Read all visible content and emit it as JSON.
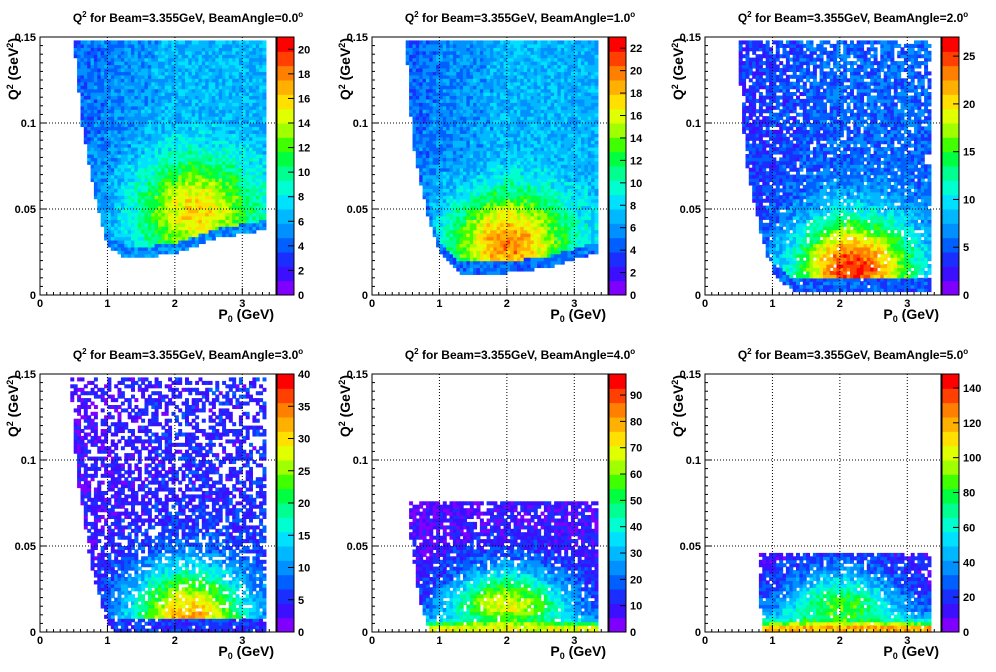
{
  "figure": {
    "colors": {
      "background": "#ffffff",
      "frame": "#000000",
      "grid": "#000000",
      "palette": [
        "#8000ff",
        "#3c10ff",
        "#1a2fff",
        "#0060ff",
        "#0090ff",
        "#00b8ff",
        "#00e0ff",
        "#00ffd0",
        "#00ff90",
        "#00ff40",
        "#40ff00",
        "#a0ff00",
        "#e0ff00",
        "#ffe000",
        "#ffb000",
        "#ff8000",
        "#ff4000",
        "#ff0000"
      ]
    }
  },
  "chart_data": [
    {
      "type": "heatmap",
      "title_prefix": "Q",
      "title_sup": "2",
      "title_rest": " for Beam=3.355GeV, BeamAngle=0.0",
      "title_deg": "o",
      "xlabel_main": "P",
      "xlabel_sub": "0",
      "xlabel_unit": " (GeV)",
      "ylabel_main": "Q",
      "ylabel_sup": "2",
      "ylabel_unit": " (GeV",
      "ylabel_unit_sup": "2",
      "ylabel_close": ")",
      "xlim": [
        0,
        3.5
      ],
      "ylim": [
        0,
        0.15
      ],
      "xticks": [
        0,
        1,
        2,
        3
      ],
      "xtick_labels": [
        "0",
        "1",
        "2",
        "3"
      ],
      "yticks": [
        0,
        0.05,
        0.1,
        0.15
      ],
      "ytick_labels": [
        "0",
        "0.05",
        "0.1",
        "0.15"
      ],
      "grid": true,
      "zlim": [
        0,
        21
      ],
      "zticks": [
        0,
        2,
        4,
        6,
        8,
        10,
        12,
        14,
        16,
        18,
        20
      ],
      "ztick_labels": [
        "0",
        "2",
        "4",
        "6",
        "8",
        "10",
        "12",
        "14",
        "16",
        "18",
        "20"
      ],
      "colorbar": "right",
      "region": {
        "xmin": 0.5,
        "xmax": 3.35,
        "ymax": 0.148,
        "edge": [
          [
            0.5,
            0.148
          ],
          [
            0.62,
            0.1
          ],
          [
            0.8,
            0.06
          ],
          [
            1.0,
            0.028
          ],
          [
            1.3,
            0.021
          ],
          [
            2.0,
            0.024
          ],
          [
            2.6,
            0.033
          ],
          [
            3.35,
            0.038
          ]
        ]
      },
      "density": {
        "peak_x": 2.3,
        "peak_y": 0.05,
        "peak_level": 0.45,
        "base_level": 0.3,
        "edge_level": 0.18,
        "low_band_level": 0.0,
        "sparse": 0.0
      }
    },
    {
      "type": "heatmap",
      "title_prefix": "Q",
      "title_sup": "2",
      "title_rest": " for Beam=3.355GeV, BeamAngle=1.0",
      "title_deg": "o",
      "xlabel_main": "P",
      "xlabel_sub": "0",
      "xlabel_unit": " (GeV)",
      "ylabel_main": "Q",
      "ylabel_sup": "2",
      "ylabel_unit": " (GeV",
      "ylabel_unit_sup": "2",
      "ylabel_close": ")",
      "xlim": [
        0,
        3.5
      ],
      "ylim": [
        0,
        0.15
      ],
      "xticks": [
        0,
        1,
        2,
        3
      ],
      "xtick_labels": [
        "0",
        "1",
        "2",
        "3"
      ],
      "yticks": [
        0,
        0.05,
        0.1,
        0.15
      ],
      "ytick_labels": [
        "0",
        "0.05",
        "0.1",
        "0.15"
      ],
      "grid": true,
      "zlim": [
        0,
        23
      ],
      "zticks": [
        0,
        2,
        4,
        6,
        8,
        10,
        12,
        14,
        16,
        18,
        20,
        22
      ],
      "ztick_labels": [
        "0",
        "2",
        "4",
        "6",
        "8",
        "10",
        "12",
        "14",
        "16",
        "18",
        "20",
        "22"
      ],
      "colorbar": "right",
      "region": {
        "xmin": 0.5,
        "xmax": 3.35,
        "ymax": 0.148,
        "edge": [
          [
            0.5,
            0.148
          ],
          [
            0.6,
            0.09
          ],
          [
            0.8,
            0.05
          ],
          [
            1.0,
            0.025
          ],
          [
            1.3,
            0.013
          ],
          [
            2.0,
            0.013
          ],
          [
            2.6,
            0.016
          ],
          [
            3.35,
            0.025
          ]
        ]
      },
      "density": {
        "peak_x": 2.0,
        "peak_y": 0.03,
        "peak_level": 0.55,
        "base_level": 0.3,
        "edge_level": 0.15,
        "low_band_level": 0.0,
        "sparse": 0.0
      }
    },
    {
      "type": "heatmap",
      "title_prefix": "Q",
      "title_sup": "2",
      "title_rest": " for Beam=3.355GeV, BeamAngle=2.0",
      "title_deg": "o",
      "xlabel_main": "P",
      "xlabel_sub": "0",
      "xlabel_unit": " (GeV)",
      "ylabel_main": "Q",
      "ylabel_sup": "2",
      "ylabel_unit": " (GeV",
      "ylabel_unit_sup": "2",
      "ylabel_close": ")",
      "xlim": [
        0,
        3.5
      ],
      "ylim": [
        0,
        0.15
      ],
      "xticks": [
        0,
        1,
        2,
        3
      ],
      "xtick_labels": [
        "0",
        "1",
        "2",
        "3"
      ],
      "yticks": [
        0,
        0.05,
        0.1,
        0.15
      ],
      "ytick_labels": [
        "0",
        "0.05",
        "0.1",
        "0.15"
      ],
      "grid": true,
      "zlim": [
        0,
        27
      ],
      "zticks": [
        0,
        5,
        10,
        15,
        20,
        25
      ],
      "ztick_labels": [
        "0",
        "5",
        "10",
        "15",
        "20",
        "25"
      ],
      "colorbar": "right",
      "region": {
        "xmin": 0.48,
        "xmax": 3.35,
        "ymax": 0.148,
        "edge": [
          [
            0.48,
            0.148
          ],
          [
            0.6,
            0.08
          ],
          [
            0.8,
            0.04
          ],
          [
            1.0,
            0.012
          ],
          [
            1.3,
            0.003
          ],
          [
            3.35,
            0.003
          ]
        ]
      },
      "density": {
        "peak_x": 2.2,
        "peak_y": 0.015,
        "peak_level": 0.75,
        "base_level": 0.2,
        "edge_level": 0.12,
        "low_band_level": 0.0,
        "sparse": 0.12
      }
    },
    {
      "type": "heatmap",
      "title_prefix": "Q",
      "title_sup": "2",
      "title_rest": " for Beam=3.355GeV, BeamAngle=3.0",
      "title_deg": "o",
      "xlabel_main": "P",
      "xlabel_sub": "0",
      "xlabel_unit": " (GeV)",
      "ylabel_main": "Q",
      "ylabel_sup": "2",
      "ylabel_unit": " (GeV",
      "ylabel_unit_sup": "2",
      "ylabel_close": ")",
      "xlim": [
        0,
        3.5
      ],
      "ylim": [
        0,
        0.15
      ],
      "xticks": [
        0,
        1,
        2,
        3
      ],
      "xtick_labels": [
        "0",
        "1",
        "2",
        "3"
      ],
      "yticks": [
        0,
        0.05,
        0.1,
        0.15
      ],
      "ytick_labels": [
        "0",
        "0.05",
        "0.1",
        "0.15"
      ],
      "grid": true,
      "zlim": [
        0,
        40
      ],
      "zticks": [
        0,
        5,
        10,
        15,
        20,
        25,
        30,
        35,
        40
      ],
      "ztick_labels": [
        "0",
        "5",
        "10",
        "15",
        "20",
        "25",
        "30",
        "35",
        "40"
      ],
      "colorbar": "right",
      "region": {
        "xmin": 0.45,
        "xmax": 3.35,
        "ymax": 0.148,
        "edge": [
          [
            0.45,
            0.148
          ],
          [
            0.55,
            0.09
          ],
          [
            0.75,
            0.04
          ],
          [
            0.95,
            0.01
          ],
          [
            1.1,
            0.0
          ],
          [
            3.35,
            0.0
          ]
        ]
      },
      "density": {
        "peak_x": 2.2,
        "peak_y": 0.008,
        "peak_level": 0.7,
        "base_level": 0.12,
        "edge_level": 0.08,
        "low_band_level": 0.0,
        "sparse": 0.3
      }
    },
    {
      "type": "heatmap",
      "title_prefix": "Q",
      "title_sup": "2",
      "title_rest": " for Beam=3.355GeV, BeamAngle=4.0",
      "title_deg": "o",
      "xlabel_main": "P",
      "xlabel_sub": "0",
      "xlabel_unit": " (GeV)",
      "ylabel_main": "Q",
      "ylabel_sup": "2",
      "ylabel_unit": " (GeV",
      "ylabel_unit_sup": "2",
      "ylabel_close": ")",
      "xlim": [
        0,
        3.5
      ],
      "ylim": [
        0,
        0.15
      ],
      "xticks": [
        0,
        1,
        2,
        3
      ],
      "xtick_labels": [
        "0",
        "1",
        "2",
        "3"
      ],
      "yticks": [
        0,
        0.05,
        0.1,
        0.15
      ],
      "ytick_labels": [
        "0",
        "0.05",
        "0.1",
        "0.15"
      ],
      "grid": true,
      "zlim": [
        0,
        98
      ],
      "zticks": [
        0,
        10,
        20,
        30,
        40,
        50,
        60,
        70,
        80,
        90
      ],
      "ztick_labels": [
        "0",
        "10",
        "20",
        "30",
        "40",
        "50",
        "60",
        "70",
        "80",
        "90"
      ],
      "colorbar": "right",
      "region": {
        "xmin": 0.55,
        "xmax": 3.35,
        "ymax": 0.075,
        "edge": [
          [
            0.55,
            0.06
          ],
          [
            0.7,
            0.02
          ],
          [
            0.85,
            0.0
          ],
          [
            3.35,
            0.0
          ]
        ]
      },
      "density": {
        "peak_x": 2.0,
        "peak_y": 0.002,
        "peak_level": 0.75,
        "base_level": 0.05,
        "edge_level": 0.02,
        "low_band_level": 0.25,
        "sparse": 0.1
      }
    },
    {
      "type": "heatmap",
      "title_prefix": "Q",
      "title_sup": "2",
      "title_rest": " for Beam=3.355GeV, BeamAngle=5.0",
      "title_deg": "o",
      "xlabel_main": "P",
      "xlabel_sub": "0",
      "xlabel_unit": " (GeV)",
      "ylabel_main": "Q",
      "ylabel_sup": "2",
      "ylabel_unit": " (GeV",
      "ylabel_unit_sup": "2",
      "ylabel_close": ")",
      "xlim": [
        0,
        3.5
      ],
      "ylim": [
        0,
        0.15
      ],
      "xticks": [
        0,
        1,
        2,
        3
      ],
      "xtick_labels": [
        "0",
        "1",
        "2",
        "3"
      ],
      "yticks": [
        0,
        0.05,
        0.1,
        0.15
      ],
      "ytick_labels": [
        "0",
        "0.05",
        "0.1",
        "0.15"
      ],
      "grid": true,
      "zlim": [
        0,
        148
      ],
      "zticks": [
        0,
        20,
        40,
        60,
        80,
        100,
        120,
        140
      ],
      "ztick_labels": [
        "0",
        "20",
        "40",
        "60",
        "80",
        "100",
        "120",
        "140"
      ],
      "colorbar": "right",
      "region": {
        "xmin": 0.8,
        "xmax": 3.35,
        "ymax": 0.045,
        "edge": [
          [
            0.8,
            0.03
          ],
          [
            0.85,
            0.0
          ],
          [
            3.35,
            0.0
          ]
        ]
      },
      "density": {
        "peak_x": 2.0,
        "peak_y": 0.002,
        "peak_level": 0.55,
        "base_level": 0.05,
        "edge_level": 0.02,
        "low_band_level": 0.35,
        "sparse": 0.08
      }
    }
  ]
}
